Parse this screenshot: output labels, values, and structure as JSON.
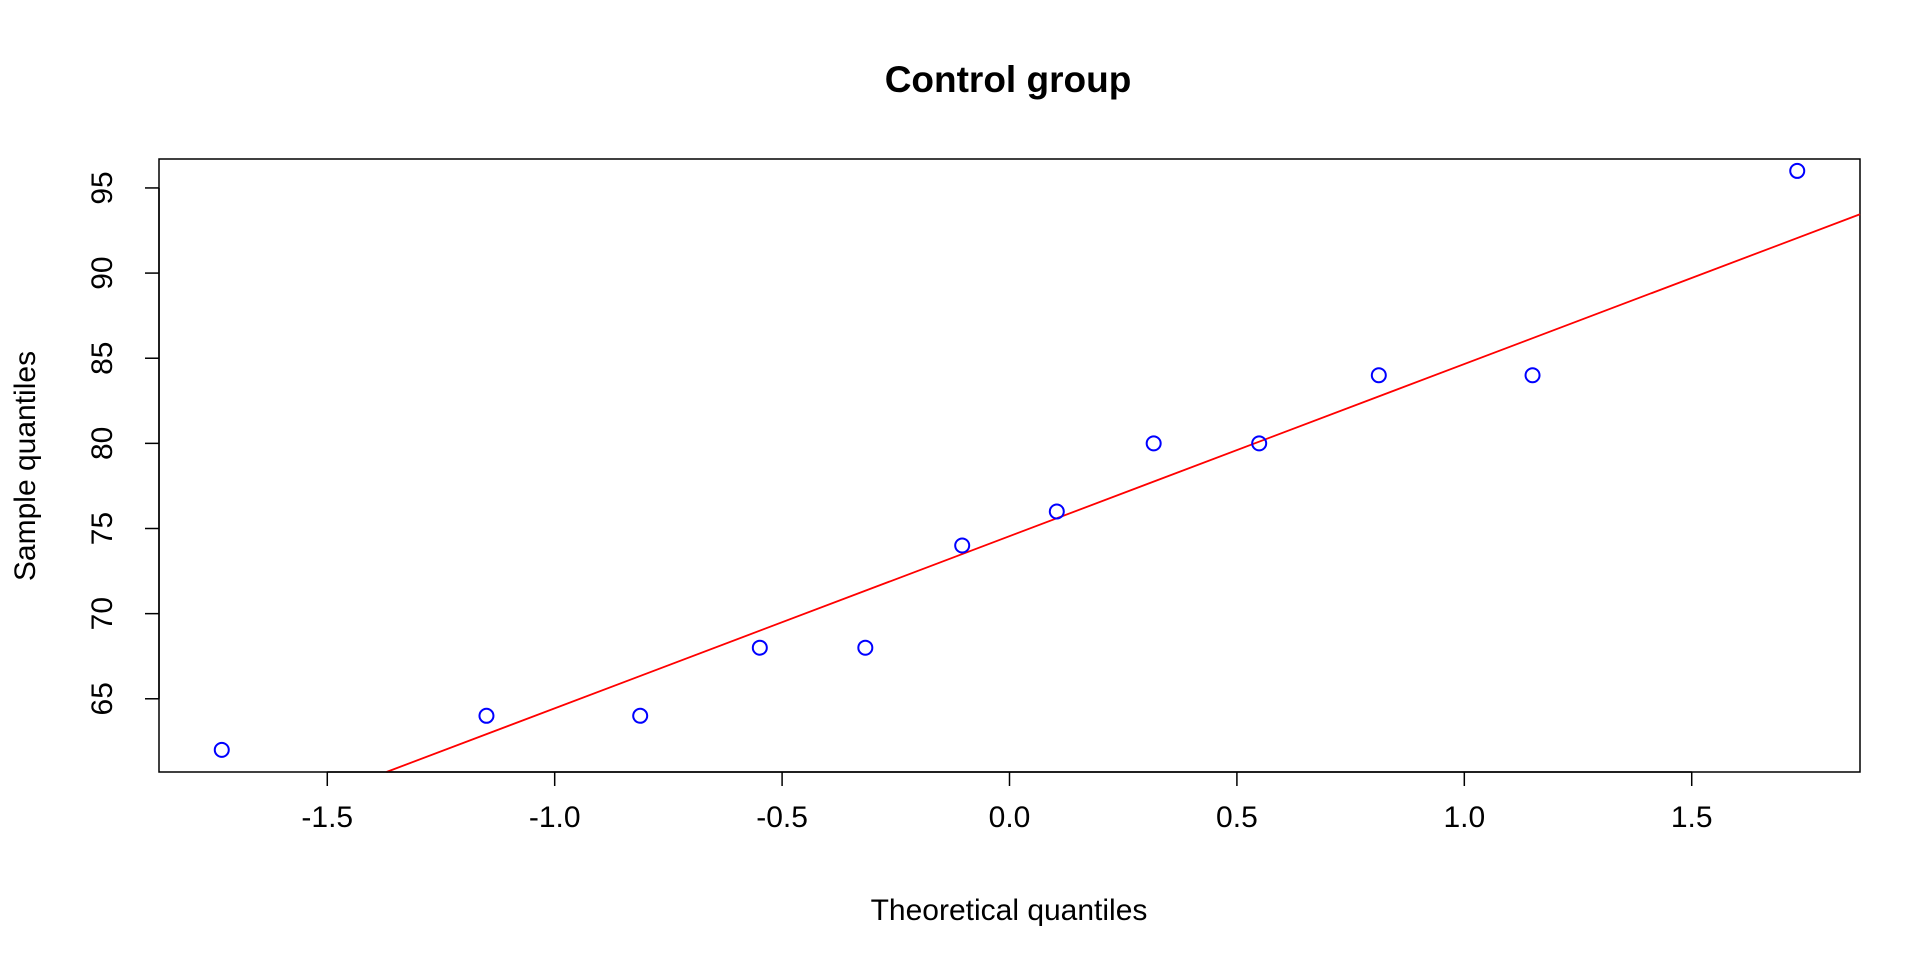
{
  "chart_data": {
    "type": "scatter",
    "title": "Control group",
    "xlabel": "Theoretical quantiles",
    "ylabel": "Sample quantiles",
    "xlim": [
      -1.87,
      1.87
    ],
    "ylim": [
      60.7,
      96.7
    ],
    "x_ticks": [
      -1.5,
      -1.0,
      -0.5,
      0.0,
      0.5,
      1.0,
      1.5
    ],
    "x_tick_labels": [
      "-1.5",
      "-1.0",
      "-0.5",
      "0.0",
      "0.5",
      "1.0",
      "1.5"
    ],
    "y_ticks": [
      65,
      70,
      75,
      80,
      85,
      90,
      95
    ],
    "y_tick_labels": [
      "65",
      "70",
      "75",
      "80",
      "85",
      "90",
      "95"
    ],
    "grid": false,
    "series": [
      {
        "marker": "open-circle",
        "color": "#0000ff",
        "x": [
          -1.732,
          -1.15,
          -0.812,
          -0.549,
          -0.317,
          -0.104,
          0.104,
          0.317,
          0.549,
          0.812,
          1.15,
          1.732
        ],
        "y": [
          62,
          64,
          64,
          68,
          68,
          74,
          76,
          80,
          80,
          84,
          84,
          96
        ]
      }
    ],
    "reference_line": {
      "color": "#ff0000",
      "intercept": 74.55,
      "slope": 10.11
    }
  }
}
